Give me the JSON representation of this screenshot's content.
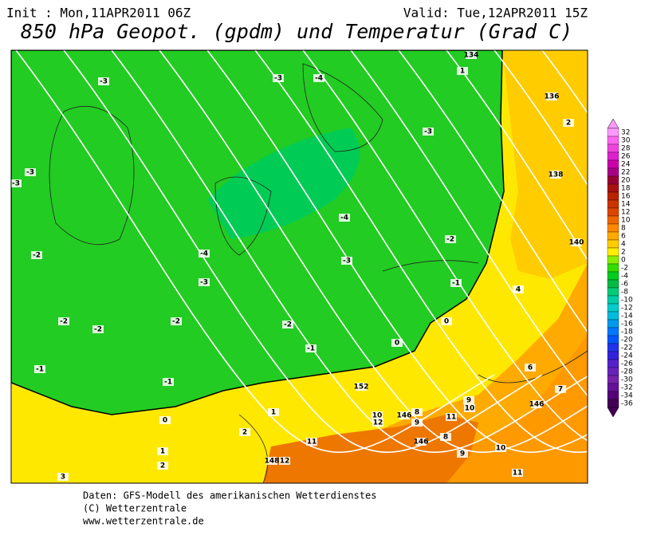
{
  "header": {
    "init": "Init : Mon,11APR2011 06Z",
    "valid": "Valid: Tue,12APR2011 15Z",
    "title": "850 hPa Geopot. (gpdm) und Temperatur (Grad C)"
  },
  "map": {
    "labels": [
      -3,
      -3,
      -4,
      -3,
      -3,
      -3,
      -4,
      -2,
      -4,
      -3,
      -2,
      -3,
      -1,
      -2,
      -2,
      -2,
      -2,
      -1,
      0,
      0,
      -1,
      -1,
      0,
      1,
      2,
      1,
      2,
      3,
      1,
      2,
      4,
      6,
      7,
      11,
      10,
      9,
      8,
      9,
      10,
      12,
      8,
      9,
      10,
      11,
      11,
      12,
      134,
      136,
      138,
      140,
      146,
      146,
      146,
      148,
      152
    ]
  },
  "colorbar": {
    "labels": [
      32,
      30,
      28,
      26,
      24,
      22,
      20,
      18,
      16,
      14,
      12,
      10,
      8,
      6,
      4,
      2,
      0,
      -2,
      -4,
      -6,
      -8,
      -10,
      -12,
      -14,
      -16,
      -18,
      -20,
      -22,
      -24,
      -26,
      -28,
      -30,
      -32,
      -34,
      -36
    ]
  },
  "footer": {
    "lines": [
      "Daten: GFS-Modell des amerikanischen Wetterdienstes",
      "(C) Wetterzentrale",
      "www.wetterzentrale.de"
    ]
  }
}
